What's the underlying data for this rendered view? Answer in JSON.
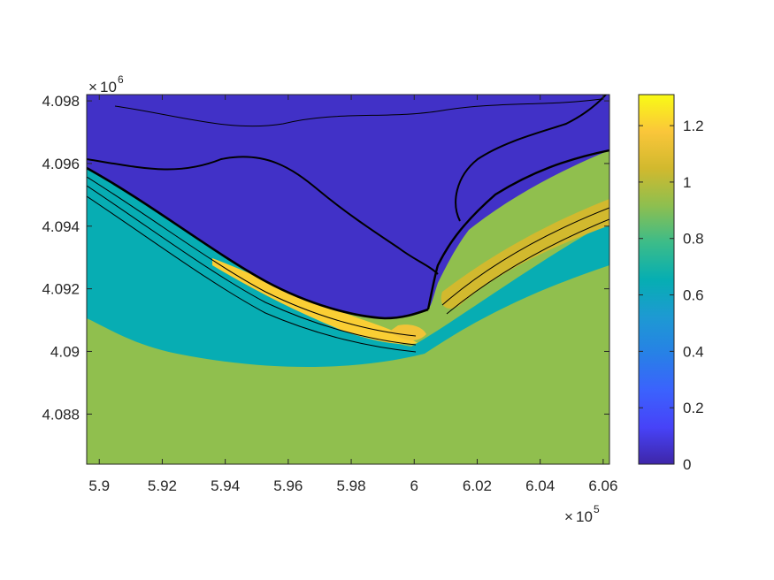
{
  "chart_data": {
    "type": "heatmap",
    "title": "",
    "xlabel": "",
    "ylabel": "",
    "x_exponent": {
      "base": "10",
      "power": "5"
    },
    "y_exponent": {
      "base": "10",
      "power": "6"
    },
    "xlim": [
      5.896,
      6.062
    ],
    "ylim": [
      4.0864,
      4.0982
    ],
    "x_ticks": [
      {
        "value": 5.9,
        "label": "5.9"
      },
      {
        "value": 5.92,
        "label": "5.92"
      },
      {
        "value": 5.94,
        "label": "5.94"
      },
      {
        "value": 5.96,
        "label": "5.96"
      },
      {
        "value": 5.98,
        "label": "5.98"
      },
      {
        "value": 6.0,
        "label": "6"
      },
      {
        "value": 6.02,
        "label": "6.02"
      },
      {
        "value": 6.04,
        "label": "6.04"
      },
      {
        "value": 6.06,
        "label": "6.06"
      }
    ],
    "y_ticks": [
      {
        "value": 4.088,
        "label": "4.088"
      },
      {
        "value": 4.09,
        "label": "4.09"
      },
      {
        "value": 4.092,
        "label": "4.092"
      },
      {
        "value": 4.094,
        "label": "4.094"
      },
      {
        "value": 4.096,
        "label": "4.096"
      },
      {
        "value": 4.098,
        "label": "4.098"
      }
    ],
    "colorbar": {
      "colormap": "parula",
      "clim": [
        0,
        1.31
      ],
      "ticks": [
        {
          "value": 0,
          "label": "0"
        },
        {
          "value": 0.2,
          "label": "0.2"
        },
        {
          "value": 0.4,
          "label": "0.4"
        },
        {
          "value": 0.6,
          "label": "0.6"
        },
        {
          "value": 0.8,
          "label": "0.8"
        },
        {
          "value": 1.0,
          "label": "1"
        },
        {
          "value": 1.2,
          "label": "1.2"
        }
      ]
    },
    "field_levels": {
      "land": 0.05,
      "open_sea": 0.92,
      "nearshore_band": 0.65,
      "shoal_peak": 1.2
    },
    "contour_color": "#000000",
    "grid": false
  },
  "colors": {
    "axis": "#262626",
    "background": "#ffffff"
  }
}
